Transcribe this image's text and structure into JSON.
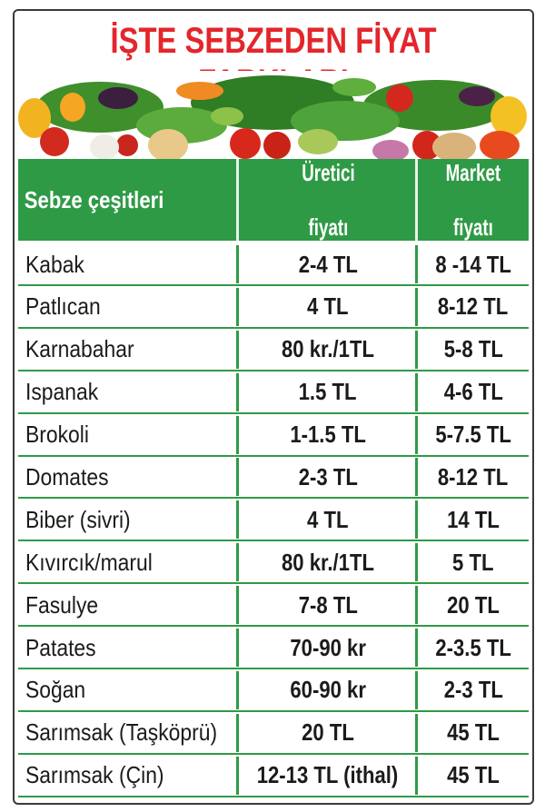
{
  "title": "İŞTE SEBZEDEN FİYAT FARKLARI",
  "table": {
    "headers": {
      "name": "Sebze çeşitleri",
      "producer_line1": "Üretici",
      "producer_line2": "fiyatı",
      "market_line1": "Market",
      "market_line2": "fiyatı"
    },
    "rows": [
      {
        "name": "Kabak",
        "producer": "2-4 TL",
        "market": "8 -14 TL"
      },
      {
        "name": "Patlıcan",
        "producer": "4 TL",
        "market": "8-12 TL"
      },
      {
        "name": "Karnabahar",
        "producer": "80 kr./1TL",
        "market": "5-8 TL"
      },
      {
        "name": "Ispanak",
        "producer": "1.5 TL",
        "market": "4-6 TL"
      },
      {
        "name": "Brokoli",
        "producer": "1-1.5 TL",
        "market": "5-7.5 TL"
      },
      {
        "name": "Domates",
        "producer": "2-3 TL",
        "market": "8-12 TL"
      },
      {
        "name": "Biber (sivri)",
        "producer": "4 TL",
        "market": "14 TL"
      },
      {
        "name": "Kıvırcık/marul",
        "producer": "80 kr./1TL",
        "market": "5 TL"
      },
      {
        "name": "Fasulye",
        "producer": "7-8 TL",
        "market": "20 TL"
      },
      {
        "name": "Patates",
        "producer": "70-90 kr",
        "market": "2-3.5 TL"
      },
      {
        "name": "Soğan",
        "producer": "60-90 kr",
        "market": "2-3 TL"
      },
      {
        "name": "Sarımsak (Taşköprü)",
        "producer": "20 TL",
        "market": "45 TL"
      },
      {
        "name": "Sarımsak (Çin)",
        "producer": "12-13 TL (ithal)",
        "market": "45 TL"
      }
    ]
  },
  "colors": {
    "title": "#e3262b",
    "header_bg": "#2f9a46",
    "header_text": "#ffffff",
    "row_separator": "#2f9a46"
  },
  "image": {
    "content": "vegetables-banner"
  }
}
